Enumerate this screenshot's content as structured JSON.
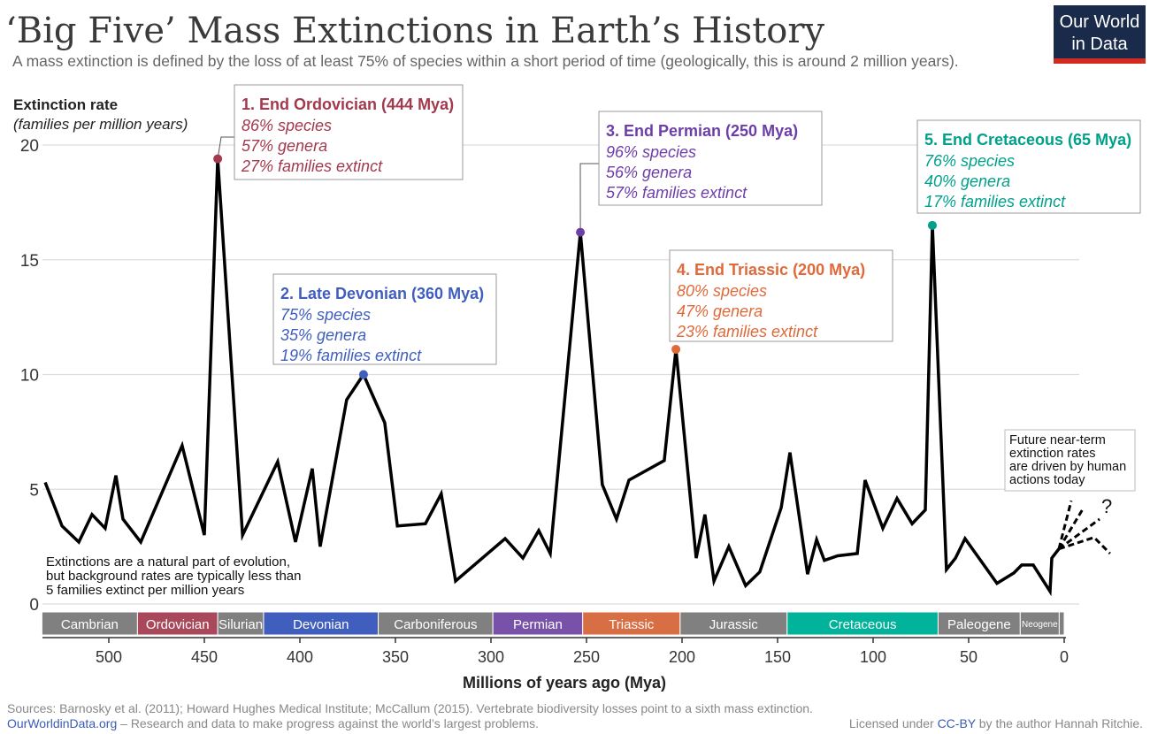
{
  "header": {
    "title": "‘Big Five’ Mass Extinctions in Earth’s History",
    "subtitle": "A mass extinction is defined by the loss of at least 75% of species within a short period of time (geologically, this is around 2 million years).",
    "logo_line1": "Our World",
    "logo_line2": "in Data",
    "logo_bg": "#1a2a4a",
    "logo_accent": "#d42b21"
  },
  "chart_data": {
    "type": "line",
    "title": "‘Big Five’ Mass Extinctions in Earth’s History",
    "ylabel": "Extinction rate",
    "ylabel_sub": "(families per million years)",
    "xlabel": "Millions of years ago (Mya)",
    "xlim": [
      535,
      0
    ],
    "ylim": [
      0,
      20
    ],
    "x_reversed": true,
    "grid": true,
    "xticks": [
      500,
      450,
      400,
      350,
      300,
      250,
      200,
      150,
      100,
      50,
      0
    ],
    "yticks": [
      0,
      5,
      10,
      15,
      20
    ],
    "line_color": "#000000",
    "series": [
      {
        "x": [
          533.3,
          524.5,
          515.7,
          508.8,
          501.9,
          496.3,
          492.6,
          483.3,
          461.6,
          450,
          443,
          430,
          411.6,
          402.3,
          393.5,
          389.4,
          375.5,
          366.7,
          355.6,
          349,
          334.3,
          326,
          318.5,
          292.6,
          283.3,
          275,
          269,
          253.2,
          241.7,
          234.3,
          227.8,
          209.3,
          203.2,
          192.6,
          188,
          183.3,
          175.5,
          166.7,
          159.3,
          148.1,
          143.5,
          134.3,
          129.6,
          125.5,
          118.5,
          108.3,
          104.2,
          94.9,
          87.5,
          79.6,
          72.7,
          69,
          61.6,
          56.9,
          51.9,
          35.2,
          26.4,
          22.2,
          16.2,
          7.4,
          6.5,
          2.8
        ],
        "y": [
          5.3,
          3.4,
          2.7,
          3.9,
          3.3,
          5.6,
          3.7,
          2.7,
          6.9,
          3.0,
          19.4,
          3.0,
          6.2,
          2.7,
          5.9,
          2.5,
          8.9,
          10.0,
          7.9,
          3.4,
          3.5,
          4.8,
          1.0,
          2.85,
          2.0,
          3.2,
          2.2,
          16.2,
          5.2,
          3.7,
          5.4,
          6.25,
          11.1,
          2.0,
          3.9,
          1.0,
          2.5,
          0.8,
          1.4,
          4.2,
          6.6,
          1.3,
          2.8,
          1.9,
          2.1,
          2.2,
          5.4,
          3.3,
          4.6,
          3.5,
          4.1,
          16.5,
          1.5,
          2.0,
          2.85,
          0.9,
          1.35,
          1.7,
          1.7,
          0.55,
          2.0,
          2.4
        ]
      }
    ],
    "future_scenarios": [
      {
        "x": [
          2.8,
          -3.7
        ],
        "y": [
          2.4,
          4.5
        ]
      },
      {
        "x": [
          2.8,
          -10.2
        ],
        "y": [
          2.4,
          4.2
        ]
      },
      {
        "x": [
          2.8,
          -18.5
        ],
        "y": [
          2.4,
          3.7
        ]
      },
      {
        "x": [
          2.8,
          -15.7,
          -24
        ],
        "y": [
          2.4,
          2.9,
          2.2
        ]
      }
    ],
    "future_mark": "?",
    "events": [
      {
        "x": 443,
        "y": 19.4,
        "color": "#a2394d",
        "title": "1. End Ordovician (444 Mya)",
        "lines": [
          "86% species",
          "57% genera",
          "27% families extinct"
        ]
      },
      {
        "x": 366.7,
        "y": 10.0,
        "color": "#3f5ebd",
        "title": "2. Late Devonian (360 Mya)",
        "lines": [
          "75% species",
          "35% genera",
          "19% families extinct"
        ]
      },
      {
        "x": 253.2,
        "y": 16.2,
        "color": "#6d3ea8",
        "title": "3. End Permian (250 Mya)",
        "lines": [
          "96% species",
          "56% genera",
          "57% families extinct"
        ]
      },
      {
        "x": 203.2,
        "y": 11.1,
        "color": "#e0693a",
        "title": "4. End Triassic (200 Mya)",
        "lines": [
          "80% species",
          "47% genera",
          "23% families extinct"
        ]
      },
      {
        "x": 69,
        "y": 16.5,
        "color": "#00a08a",
        "title": "5. End Cretaceous (65 Mya)",
        "lines": [
          "76% species",
          "40% genera",
          "17% families extinct"
        ]
      }
    ],
    "periods": [
      {
        "name": "Cambrian",
        "start": 541,
        "end": 485,
        "color": "#808080"
      },
      {
        "name": "Ordovician",
        "start": 485,
        "end": 443,
        "color": "#a8485a"
      },
      {
        "name": "Silurian",
        "start": 443,
        "end": 419,
        "color": "#808080"
      },
      {
        "name": "Devonian",
        "start": 419,
        "end": 359,
        "color": "#3f5ebd"
      },
      {
        "name": "Carboniferous",
        "start": 359,
        "end": 299,
        "color": "#808080"
      },
      {
        "name": "Permian",
        "start": 299,
        "end": 252,
        "color": "#7852a9"
      },
      {
        "name": "Triassic",
        "start": 252,
        "end": 201,
        "color": "#d86e44"
      },
      {
        "name": "Jurassic",
        "start": 201,
        "end": 145,
        "color": "#808080"
      },
      {
        "name": "Cretaceous",
        "start": 145,
        "end": 66,
        "color": "#00b39a"
      },
      {
        "name": "Paleogene",
        "start": 66,
        "end": 23,
        "color": "#808080"
      },
      {
        "name": "Neogene",
        "start": 23,
        "end": 2.6,
        "color": "#808080"
      },
      {
        "name": "",
        "start": 2.6,
        "end": 0,
        "color": "#808080"
      }
    ],
    "annotations": {
      "background": [
        "Extinctions are a natural part of evolution,",
        "but background rates are typically less than",
        "5 families extinct per million years"
      ],
      "future": [
        "Future near-term",
        "extinction rates",
        "are driven by human",
        "actions today"
      ]
    }
  },
  "footer": {
    "sources": "Sources: Barnosky et al. (2011); Howard Hughes Medical Institute; McCallum (2015). Vertebrate biodiversity losses point to a sixth mass extinction.",
    "site": "OurWorldinData.org",
    "tagline": " – Research and data to make progress against the world’s largest problems.",
    "license_prefix": "Licensed under ",
    "license": "CC-BY",
    "license_suffix": " by the author Hannah Ritchie."
  }
}
